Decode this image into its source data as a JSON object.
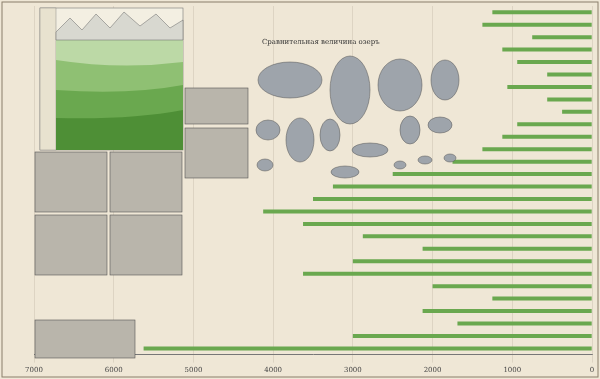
{
  "chart_data": {
    "type": "bar",
    "orientation": "horizontal",
    "categories": [
      null,
      null,
      null,
      null,
      null,
      null,
      null,
      null,
      null,
      null,
      null,
      null,
      null,
      null,
      null,
      null,
      null,
      null,
      null,
      null,
      null,
      null,
      null,
      null,
      null,
      null,
      null,
      null
    ],
    "values": [
      1250,
      1375,
      750,
      1125,
      938,
      562,
      1062,
      562,
      375,
      938,
      1125,
      1375,
      1750,
      2500,
      3250,
      3500,
      4125,
      3625,
      2875,
      2125,
      3000,
      3625,
      2000,
      1250,
      2125,
      1688,
      3000,
      5625
    ],
    "color": "#6aa84f",
    "xlim": [
      0,
      7000
    ],
    "xticks": [
      0,
      1000,
      2000,
      3000,
      4000,
      5000,
      6000,
      7000
    ],
    "grid": true,
    "tick_labels": "x",
    "annotations": [
      "Сравнительная величина озеръ"
    ]
  }
}
